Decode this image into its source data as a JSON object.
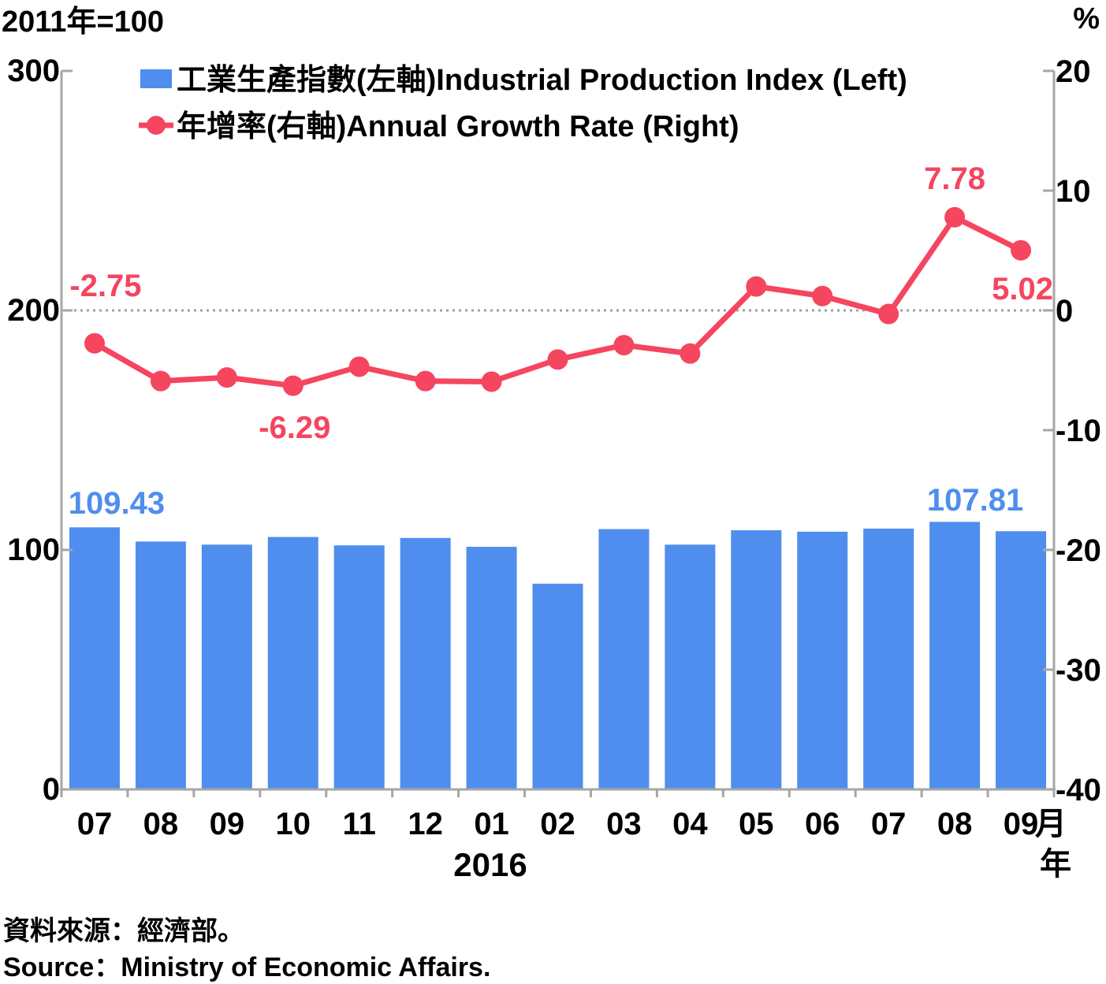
{
  "chart_data": {
    "type": "bar+line",
    "left_unit": "2011年=100",
    "right_unit": "%",
    "left_axis": {
      "min": 0,
      "max": 300,
      "ticks": [
        "0",
        "100",
        "200",
        "300"
      ]
    },
    "right_axis": {
      "min": -40,
      "max": 20,
      "ticks": [
        "-40",
        "-30",
        "-20",
        "-10",
        "0",
        "10",
        "20"
      ]
    },
    "categories": [
      "07",
      "08",
      "09",
      "10",
      "11",
      "12",
      "01",
      "02",
      "03",
      "04",
      "05",
      "06",
      "07",
      "08",
      "09"
    ],
    "x_unit": "月",
    "year_label": "2016",
    "year_unit": "年",
    "series": [
      {
        "name": "工業生產指數(左軸)Industrial Production Index (Left)",
        "kind": "bar",
        "axis": "left",
        "color": "#4f8eee",
        "values": [
          109.43,
          103.5,
          102.2,
          105.4,
          101.9,
          105.0,
          101.3,
          85.9,
          108.7,
          102.2,
          108.2,
          107.6,
          108.9,
          111.7,
          107.81
        ],
        "labels": {
          "0": "109.43",
          "14": "107.81"
        }
      },
      {
        "name": "年增率(右軸)Annual Growth Rate (Right)",
        "kind": "line",
        "axis": "right",
        "color": "#f5455f",
        "values": [
          -2.75,
          -5.9,
          -5.6,
          -6.29,
          -4.7,
          -5.9,
          -5.95,
          -4.1,
          -2.9,
          -3.6,
          2.0,
          1.2,
          -0.3,
          7.78,
          5.02
        ],
        "labels": {
          "0": "-2.75",
          "3": "-6.29",
          "13": "7.78",
          "14": "5.02"
        }
      }
    ],
    "zero_line_right": 0
  },
  "source_zh": "資料來源：經濟部。",
  "source_en": "Source：Ministry of Economic Affairs."
}
